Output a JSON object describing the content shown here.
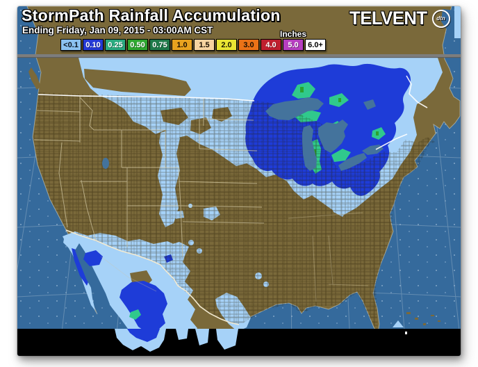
{
  "header": {
    "title": "StormPath Rainfall Accumulation",
    "subtitle": "Ending Friday, Jan 09, 2015 - 03:00AM CST",
    "units_label": "Inches"
  },
  "logo": {
    "name": "TELVENT",
    "badge": "dtn"
  },
  "legend": {
    "items": [
      {
        "label": "<0.1",
        "color": "#8cc2f0",
        "text": "#0a1420"
      },
      {
        "label": "0.10",
        "color": "#2439d6",
        "text": "#ffffff"
      },
      {
        "label": "0.25",
        "color": "#2aab80",
        "text": "#ffffff"
      },
      {
        "label": "0.50",
        "color": "#2fa72f",
        "text": "#ffffff"
      },
      {
        "label": "0.75",
        "color": "#1f7a4a",
        "text": "#ffffff"
      },
      {
        "label": "1.0",
        "color": "#e8a21f",
        "text": "#1a0e00"
      },
      {
        "label": "1.5",
        "color": "#f6d3a0",
        "text": "#1a0e00"
      },
      {
        "label": "2.0",
        "color": "#e9e533",
        "text": "#1a1a00"
      },
      {
        "label": "3.0",
        "color": "#ea7217",
        "text": "#1a0e00"
      },
      {
        "label": "4.0",
        "color": "#bf1f2e",
        "text": "#ffffff"
      },
      {
        "label": "5.0",
        "color": "#b63fc0",
        "text": "#ffffff"
      },
      {
        "label": "6.0+",
        "color": "#ffffff",
        "text": "#000000"
      }
    ]
  },
  "map": {
    "palette": {
      "ocean": "#356a9c",
      "land": "#7a693a",
      "precip_light": "#a6d2f8",
      "precip_moderate": "#1e3cd8",
      "precip_teal": "#30c98c",
      "precip_green": "#2aa32f",
      "lakes": "#44739c",
      "border_canada": "#ffffff",
      "border_mexico": "#f2ead2",
      "state_lines": "#cfc49f",
      "seam": "#7d7d7d",
      "no_data": "#000000"
    }
  }
}
